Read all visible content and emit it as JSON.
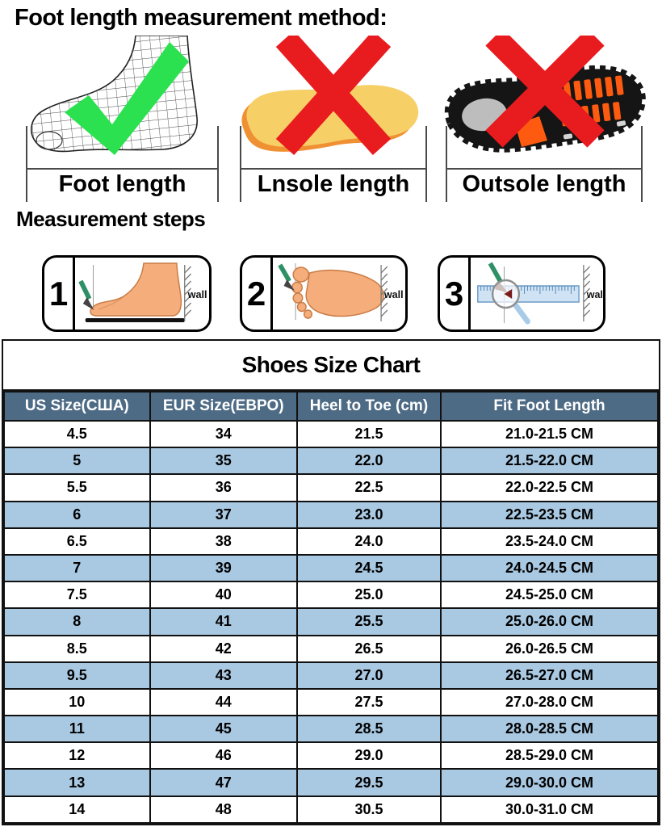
{
  "method": {
    "title": "Foot length measurement method:",
    "panels": [
      {
        "label": "Foot length",
        "verdict": "correct",
        "icon": "green-check-icon"
      },
      {
        "label": "Lnsole length",
        "verdict": "incorrect",
        "icon": "red-x-icon"
      },
      {
        "label": "Outsole length",
        "verdict": "incorrect",
        "icon": "red-x-icon"
      }
    ]
  },
  "steps": {
    "title": "Measurement steps",
    "items": [
      {
        "number": "1",
        "wall_label": "wall"
      },
      {
        "number": "2",
        "wall_label": "wall"
      },
      {
        "number": "3",
        "wall_label": "wall"
      }
    ]
  },
  "chart_data": {
    "type": "table",
    "title": "Shoes Size Chart",
    "columns": [
      "US Size(США)",
      "EUR Size(ЕВРО)",
      "Heel to Toe (cm)",
      "Fit Foot Length"
    ],
    "rows": [
      [
        "4.5",
        "34",
        "21.5",
        "21.0-21.5 CM"
      ],
      [
        "5",
        "35",
        "22.0",
        "21.5-22.0 CM"
      ],
      [
        "5.5",
        "36",
        "22.5",
        "22.0-22.5 CM"
      ],
      [
        "6",
        "37",
        "23.0",
        "22.5-23.5 CM"
      ],
      [
        "6.5",
        "38",
        "24.0",
        "23.5-24.0 CM"
      ],
      [
        "7",
        "39",
        "24.5",
        "24.0-24.5 CM"
      ],
      [
        "7.5",
        "40",
        "25.0",
        "24.5-25.0 CM"
      ],
      [
        "8",
        "41",
        "25.5",
        "25.0-26.0 CM"
      ],
      [
        "8.5",
        "42",
        "26.5",
        "26.0-26.5 CM"
      ],
      [
        "9.5",
        "43",
        "27.0",
        "26.5-27.0 CM"
      ],
      [
        "10",
        "44",
        "27.5",
        "27.0-28.0 CM"
      ],
      [
        "11",
        "45",
        "28.5",
        "28.0-28.5 CM"
      ],
      [
        "12",
        "46",
        "29.0",
        "28.5-29.0 CM"
      ],
      [
        "13",
        "47",
        "29.5",
        "29.0-30.0 CM"
      ],
      [
        "14",
        "48",
        "30.5",
        "30.0-31.0 CM"
      ]
    ]
  },
  "colors": {
    "header_bg": "#4e6b85",
    "row_alt_bg": "#a9c8e1",
    "check_green": "#2be14f",
    "cross_red": "#e81b1e"
  }
}
